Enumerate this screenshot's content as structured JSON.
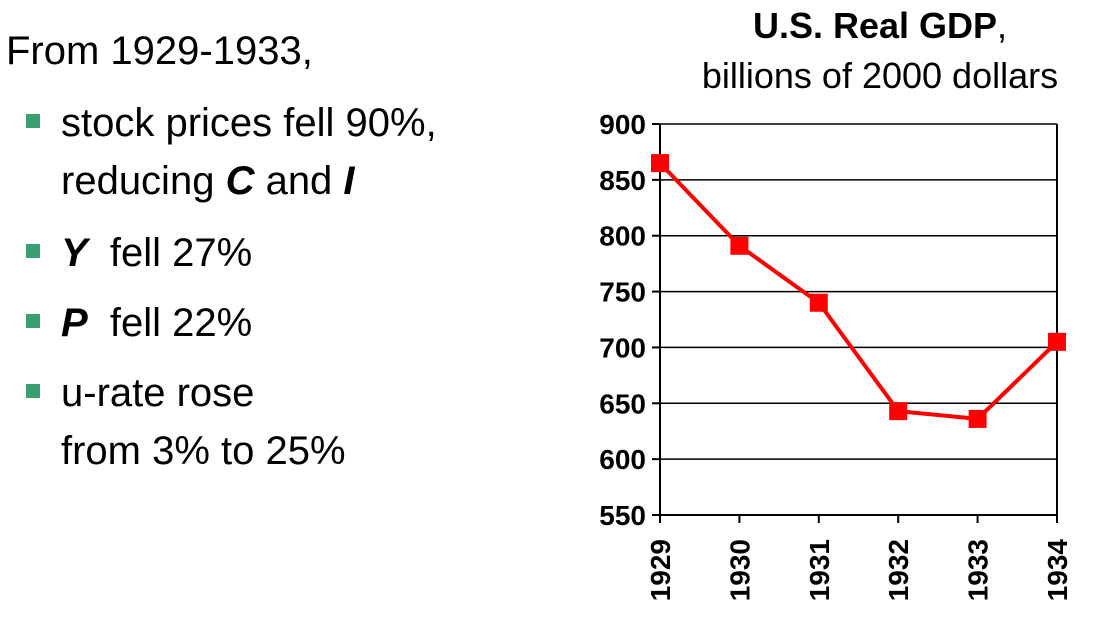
{
  "text": {
    "heading": "From 1929-1933,",
    "bullets": [
      {
        "lines": [
          "stock prices fell 90%,"
        ],
        "line2_pre": "reducing ",
        "var1": "C",
        "line2_mid": " and ",
        "var2": "I"
      },
      {
        "var": "Y",
        "rest": "  fell 27%"
      },
      {
        "var": "P",
        "rest": "  fell 22%"
      },
      {
        "line1": "u-rate rose",
        "line2": "from 3% to 25%"
      }
    ]
  },
  "chart_data": {
    "type": "line",
    "title": "U.S. Real GDP",
    "title_suffix": ",",
    "subtitle": "billions of 2000 dollars",
    "categories": [
      "1929",
      "1930",
      "1931",
      "1932",
      "1933",
      "1934"
    ],
    "values": [
      865,
      791,
      740,
      643,
      636,
      705
    ],
    "ylim": [
      550,
      900
    ],
    "yticks": [
      "550",
      "600",
      "650",
      "700",
      "750",
      "800",
      "850",
      "900"
    ],
    "grid": true,
    "line_color": "#ff0000",
    "marker": "square"
  }
}
